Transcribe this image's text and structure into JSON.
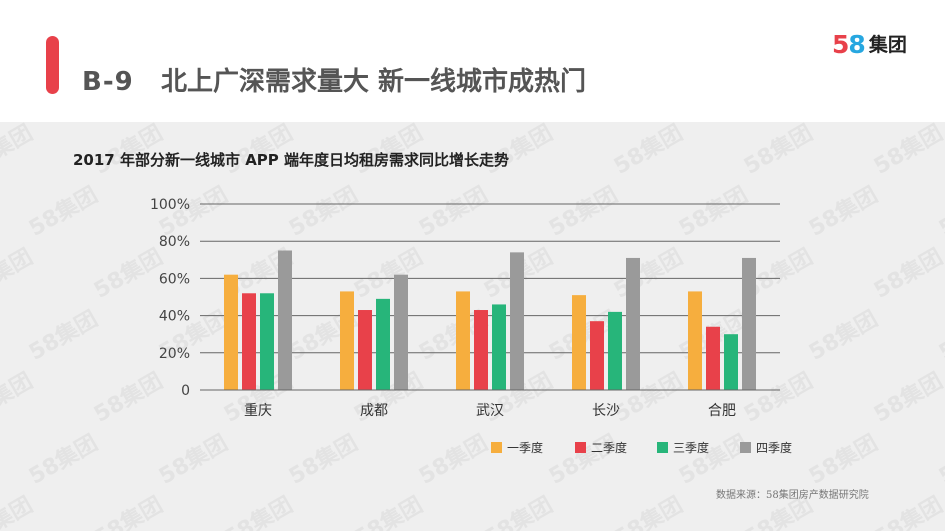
{
  "header": {
    "slide_code": "B-9",
    "title": "北上广深需求量大 新一线城市成热门"
  },
  "logo": {
    "digit_1": "5",
    "digit_2": "8",
    "text": "集团"
  },
  "watermark_text": "58集团",
  "source": "数据来源：58集团房产数据研究院",
  "colors": {
    "accent": "#e8414a",
    "series": [
      "#f6ae3e",
      "#e8414a",
      "#27b57a",
      "#9a9a9a"
    ],
    "grid": "#666666",
    "background": "#efefef"
  },
  "chart_data": {
    "type": "bar",
    "title": "2017 年部分新一线城市 APP 端年度日均租房需求同比增长走势",
    "categories": [
      "重庆",
      "成都",
      "武汉",
      "长沙",
      "合肥"
    ],
    "series": [
      {
        "name": "一季度",
        "values": [
          62,
          53,
          53,
          51,
          53
        ]
      },
      {
        "name": "二季度",
        "values": [
          52,
          43,
          43,
          37,
          34
        ]
      },
      {
        "name": "三季度",
        "values": [
          52,
          49,
          46,
          42,
          30
        ]
      },
      {
        "name": "四季度",
        "values": [
          75,
          62,
          74,
          71,
          71
        ]
      }
    ],
    "ylim": [
      0,
      100
    ],
    "yticks": [
      0,
      20,
      40,
      60,
      80,
      100
    ],
    "ytick_labels": [
      "0",
      "20%",
      "40%",
      "60%",
      "80%",
      "100%"
    ],
    "grid": true,
    "legend_position": "bottom-right"
  }
}
